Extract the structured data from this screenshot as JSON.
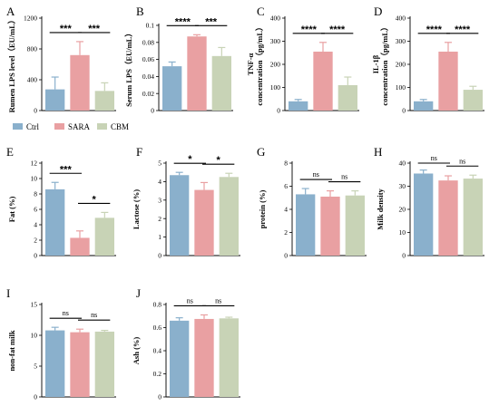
{
  "legend": {
    "items": [
      {
        "label": "Ctrl",
        "color": "#8AB0CC"
      },
      {
        "label": "SARA",
        "color": "#E9A0A2"
      },
      {
        "label": "CBM",
        "color": "#C8D3B6"
      }
    ]
  },
  "chart_data": [
    {
      "id": "A",
      "type": "bar",
      "categories": [
        "Ctrl",
        "SARA",
        "CBM"
      ],
      "values": [
        275,
        720,
        255
      ],
      "errors": [
        160,
        175,
        105
      ],
      "ylabel": "Rumen LPS level（EU/mL）",
      "ylim": [
        0,
        1200
      ],
      "yticks": [
        0,
        400,
        800,
        1200
      ],
      "significance": [
        {
          "from": 0,
          "to": 1,
          "label": "***"
        },
        {
          "from": 1,
          "to": 2,
          "label": "***"
        }
      ]
    },
    {
      "id": "B",
      "type": "bar",
      "categories": [
        "Ctrl",
        "SARA",
        "CBM"
      ],
      "values": [
        0.052,
        0.087,
        0.064
      ],
      "errors": [
        0.005,
        0.002,
        0.01
      ],
      "ylabel": "Serum LPS（EU/mL）",
      "ylim": [
        0,
        0.1
      ],
      "yticks": [
        0,
        0.02,
        0.04,
        0.06,
        0.08,
        0.1
      ],
      "significance": [
        {
          "from": 0,
          "to": 1,
          "label": "****"
        },
        {
          "from": 1,
          "to": 2,
          "label": "***"
        }
      ]
    },
    {
      "id": "C",
      "type": "bar",
      "categories": [
        "Ctrl",
        "SARA",
        "CBM"
      ],
      "values": [
        40,
        255,
        110
      ],
      "errors": [
        8,
        40,
        35
      ],
      "ylabel": "TNF-α concentration（pg/mL）",
      "ylabel_lines": [
        "TNF-α",
        "concentration（pg/mL）"
      ],
      "ylim": [
        0,
        400
      ],
      "yticks": [
        0,
        100,
        200,
        300,
        400
      ],
      "significance": [
        {
          "from": 0,
          "to": 1,
          "label": "****"
        },
        {
          "from": 1,
          "to": 2,
          "label": "****"
        }
      ]
    },
    {
      "id": "D",
      "type": "bar",
      "categories": [
        "Ctrl",
        "SARA",
        "CBM"
      ],
      "values": [
        40,
        255,
        90
      ],
      "errors": [
        8,
        40,
        15
      ],
      "ylabel": "IL-1β concentration（pg/mL）",
      "ylabel_lines": [
        "IL-1β",
        "concentration（pg/mL）"
      ],
      "ylim": [
        0,
        400
      ],
      "yticks": [
        0,
        100,
        200,
        300,
        400
      ],
      "significance": [
        {
          "from": 0,
          "to": 1,
          "label": "****"
        },
        {
          "from": 1,
          "to": 2,
          "label": "****"
        }
      ]
    },
    {
      "id": "E",
      "type": "bar",
      "categories": [
        "Ctrl",
        "SARA",
        "CBM"
      ],
      "values": [
        8.6,
        2.3,
        4.9
      ],
      "errors": [
        0.9,
        0.9,
        0.7
      ],
      "ylabel": "Fat (%)",
      "ylim": [
        0,
        12
      ],
      "yticks": [
        0,
        2,
        4,
        6,
        8,
        10,
        12
      ],
      "significance": [
        {
          "from": 0,
          "to": 1,
          "label": "***"
        },
        {
          "from": 1,
          "to": 2,
          "label": "*"
        }
      ]
    },
    {
      "id": "F",
      "type": "bar",
      "categories": [
        "Ctrl",
        "SARA",
        "CBM"
      ],
      "values": [
        4.35,
        3.55,
        4.25
      ],
      "errors": [
        0.15,
        0.4,
        0.2
      ],
      "ylabel": "Lactose (%)",
      "ylim": [
        0,
        5
      ],
      "yticks": [
        0,
        1,
        2,
        3,
        4,
        5
      ],
      "significance": [
        {
          "from": 0,
          "to": 1,
          "label": "*"
        },
        {
          "from": 1,
          "to": 2,
          "label": "*"
        }
      ]
    },
    {
      "id": "G",
      "type": "bar",
      "categories": [
        "Ctrl",
        "SARA",
        "CBM"
      ],
      "values": [
        5.3,
        5.1,
        5.2
      ],
      "errors": [
        0.5,
        0.5,
        0.4
      ],
      "ylabel": "protein (%)",
      "ylim": [
        0,
        8
      ],
      "yticks": [
        0,
        2,
        4,
        6,
        8
      ],
      "significance": [
        {
          "from": 0,
          "to": 1,
          "label": "ns"
        },
        {
          "from": 1,
          "to": 2,
          "label": "ns"
        }
      ]
    },
    {
      "id": "H",
      "type": "bar",
      "categories": [
        "Ctrl",
        "SARA",
        "CBM"
      ],
      "values": [
        35.5,
        32.5,
        33.3
      ],
      "errors": [
        1.5,
        2,
        1.5
      ],
      "ylabel": "Milk density",
      "ylim": [
        0,
        40
      ],
      "yticks": [
        0,
        10,
        20,
        30,
        40
      ],
      "significance": [
        {
          "from": 0,
          "to": 1,
          "label": "ns"
        },
        {
          "from": 1,
          "to": 2,
          "label": "ns"
        }
      ]
    },
    {
      "id": "I",
      "type": "bar",
      "categories": [
        "Ctrl",
        "SARA",
        "CBM"
      ],
      "values": [
        10.8,
        10.5,
        10.6
      ],
      "errors": [
        0.5,
        0.5,
        0.2
      ],
      "ylabel": "non-fat milk",
      "ylim": [
        0,
        15
      ],
      "yticks": [
        0,
        5,
        10,
        15
      ],
      "significance": [
        {
          "from": 0,
          "to": 1,
          "label": "ns"
        },
        {
          "from": 1,
          "to": 2,
          "label": "ns"
        }
      ]
    },
    {
      "id": "J",
      "type": "bar",
      "categories": [
        "Ctrl",
        "SARA",
        "CBM"
      ],
      "values": [
        0.66,
        0.675,
        0.68
      ],
      "errors": [
        0.025,
        0.035,
        0.01
      ],
      "ylabel": "Ash (%)",
      "ylim": [
        0,
        0.8
      ],
      "yticks": [
        0,
        0.2,
        0.4,
        0.6,
        0.8
      ],
      "significance": [
        {
          "from": 0,
          "to": 1,
          "label": "ns"
        },
        {
          "from": 1,
          "to": 2,
          "label": "ns"
        }
      ]
    }
  ]
}
